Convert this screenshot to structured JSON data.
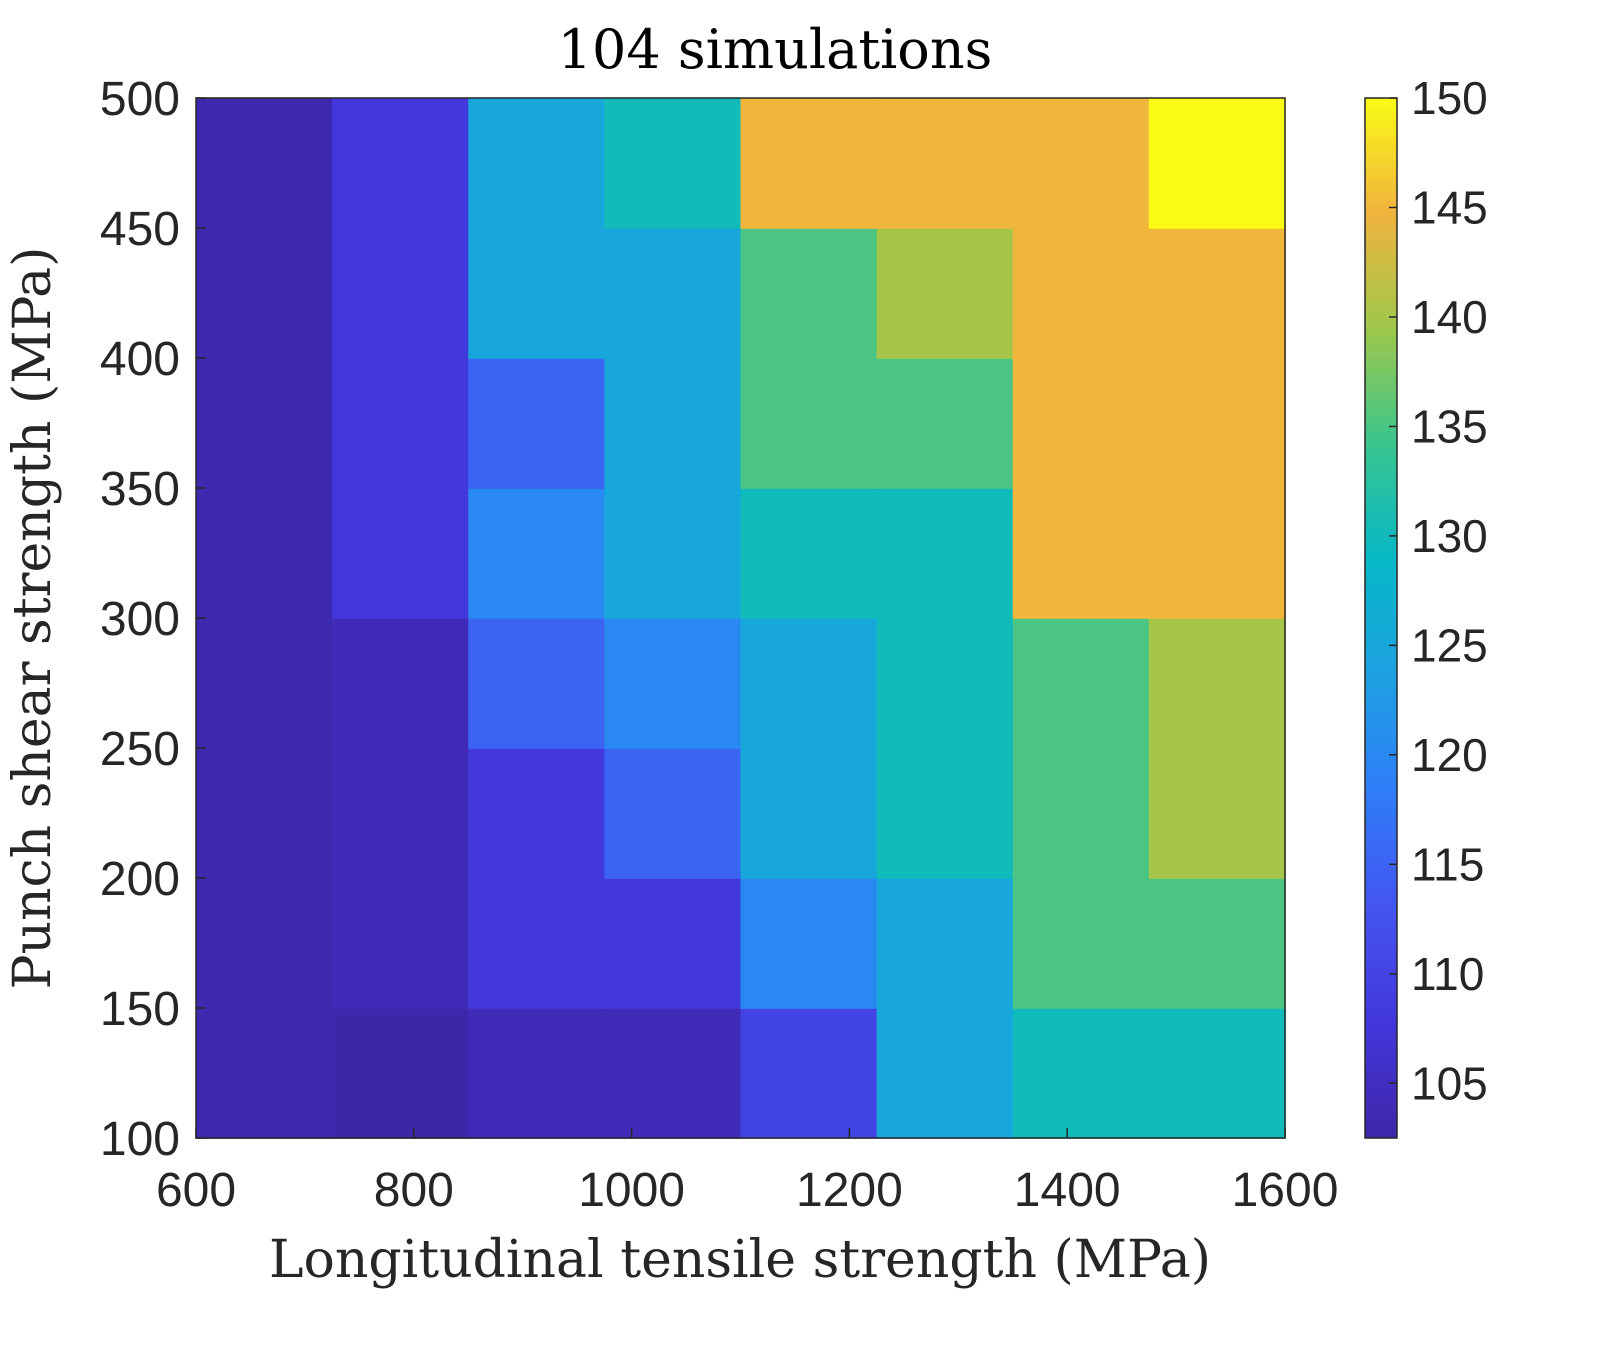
{
  "chart_data": {
    "type": "heatmap",
    "title": "104 simulations",
    "xlabel": "Longitudinal tensile strength (MPa)",
    "ylabel": "Punch shear strength (MPa)",
    "x": [
      650,
      775,
      900,
      1025,
      1150,
      1275,
      1400,
      1525
    ],
    "y": [
      125,
      175,
      225,
      275,
      325,
      375,
      425,
      475
    ],
    "x_edges": [
      600,
      725,
      850,
      975,
      1100,
      1225,
      1350,
      1475,
      1600
    ],
    "y_edges": [
      100,
      150,
      200,
      250,
      300,
      350,
      400,
      450,
      500
    ],
    "z": [
      [
        103,
        102,
        104,
        104,
        110,
        125,
        130,
        130
      ],
      [
        103,
        104,
        108,
        108,
        120,
        125,
        135,
        135
      ],
      [
        103,
        104,
        108,
        115,
        125,
        130,
        135,
        140
      ],
      [
        103,
        104,
        115,
        120,
        125,
        130,
        135,
        140
      ],
      [
        103,
        108,
        120,
        125,
        130,
        130,
        145,
        145
      ],
      [
        103,
        108,
        115,
        125,
        135,
        135,
        145,
        145
      ],
      [
        103,
        108,
        125,
        125,
        135,
        140,
        145,
        145
      ],
      [
        103,
        108,
        125,
        130,
        145,
        145,
        145,
        150
      ]
    ],
    "xlim": [
      600,
      1600
    ],
    "ylim": [
      100,
      500
    ],
    "xticks": [
      600,
      800,
      1000,
      1200,
      1400,
      1600
    ],
    "yticks": [
      100,
      150,
      200,
      250,
      300,
      350,
      400,
      450,
      500
    ],
    "colorbar": {
      "range": [
        102.5,
        150
      ],
      "ticks": [
        105,
        110,
        115,
        120,
        125,
        130,
        135,
        140,
        145,
        150
      ],
      "colormap": "parula"
    },
    "grid": false
  }
}
